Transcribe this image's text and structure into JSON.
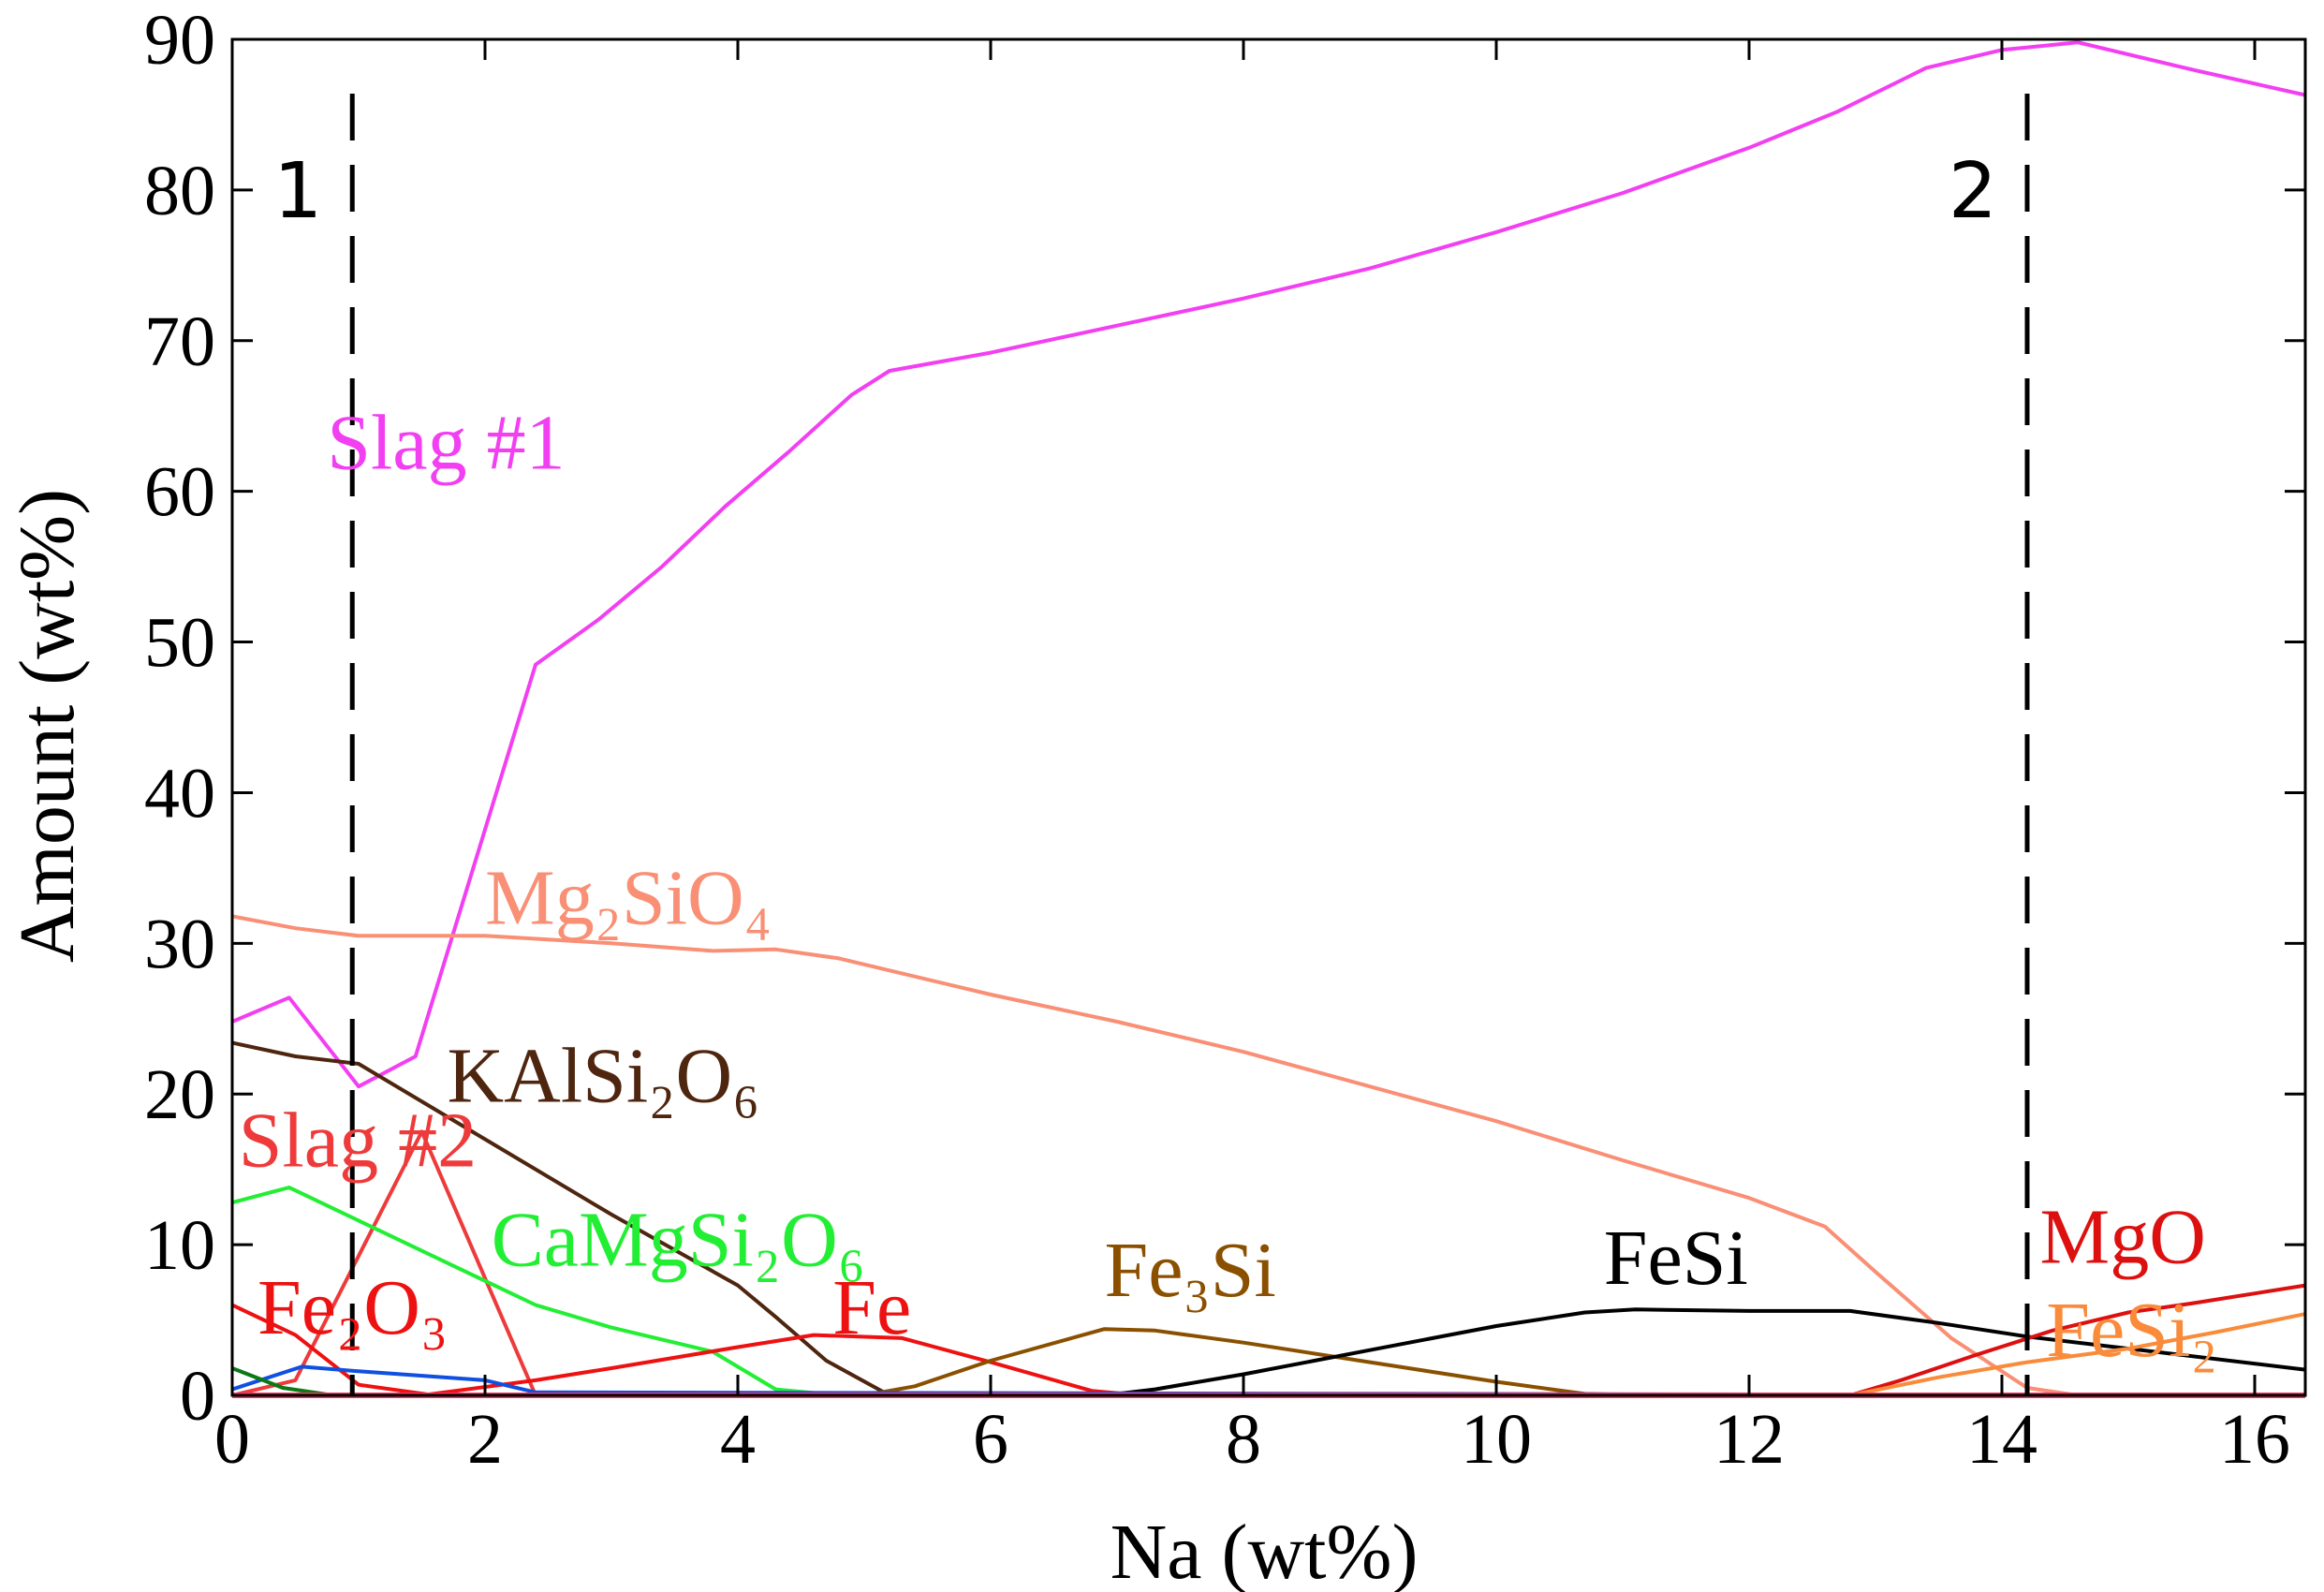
{
  "chart_data": {
    "type": "line",
    "title": "",
    "xlabel": "Na (wt%)",
    "ylabel": "Amount (wt%)",
    "xlim": [
      0,
      16.4
    ],
    "ylim": [
      0,
      90
    ],
    "xticks": [
      "0",
      "2",
      "4",
      "6",
      "8",
      "10",
      "12",
      "14",
      "16"
    ],
    "yticks": [
      "0",
      "10",
      "20",
      "30",
      "40",
      "50",
      "60",
      "70",
      "80",
      "90"
    ],
    "grid": false,
    "markers": [
      {
        "label": "1",
        "x": 0.95
      },
      {
        "label": "2",
        "x": 14.2
      }
    ],
    "series": [
      {
        "name": "Slag #1",
        "label": "Slag #1",
        "color": "#f23ff2",
        "x": [
          0,
          0.45,
          1,
          1.45,
          2.4,
          2.9,
          3.4,
          3.9,
          4.4,
          4.9,
          5.2,
          6,
          7,
          8,
          9,
          10,
          11,
          12,
          12.7,
          13.4,
          14,
          14.6,
          15.5,
          16.4
        ],
        "y": [
          24.8,
          26.4,
          20.5,
          22.5,
          48.5,
          51.5,
          55,
          59,
          62.6,
          66.4,
          68,
          69.2,
          71,
          72.8,
          74.8,
          77.2,
          79.8,
          82.8,
          85.2,
          88.1,
          89.3,
          89.8,
          88,
          86.3
        ]
      },
      {
        "name": "Mg2SiO4",
        "label": "Mg₂SiO₄",
        "color": "#f98f75",
        "x": [
          0,
          0.5,
          1,
          2,
          3,
          3.8,
          4.3,
          4.8,
          5.2,
          6,
          7,
          8,
          9,
          10,
          11,
          12,
          12.6,
          13,
          13.6,
          14.2,
          14.6,
          16.4
        ],
        "y": [
          31.8,
          31,
          30.5,
          30.5,
          30,
          29.5,
          29.6,
          29,
          28.2,
          26.6,
          24.8,
          22.8,
          20.5,
          18.2,
          15.6,
          13.1,
          11.2,
          8.2,
          3.8,
          0.5,
          0,
          0
        ]
      },
      {
        "name": "KAlSi2O6",
        "label": "KAlSi₂O₆",
        "color": "#4e260f",
        "x": [
          0,
          0.5,
          1,
          2,
          3,
          4,
          4.3,
          4.7,
          5.2,
          16.4
        ],
        "y": [
          23.4,
          22.5,
          22,
          17,
          12,
          7.3,
          5.2,
          2.3,
          0,
          0
        ]
      },
      {
        "name": "Slag #2",
        "label": "Slag #2",
        "color": "#ee3a3a",
        "x": [
          0,
          0.5,
          1.5,
          2.4,
          16.4
        ],
        "y": [
          0,
          1,
          17.5,
          0,
          0
        ]
      },
      {
        "name": "CaMgSi2O6",
        "label": "CaMgSi₂O₆",
        "color": "#22ee33",
        "x": [
          0,
          0.45,
          1,
          1.8,
          2.4,
          3,
          3.8,
          4.3,
          4.8,
          16.4
        ],
        "y": [
          12.8,
          13.8,
          11.6,
          8.4,
          6,
          4.5,
          2.9,
          0.4,
          0,
          0
        ]
      },
      {
        "name": "Fe2O3",
        "label": "Fe₂O₃",
        "color": "#ee1111",
        "x": [
          0,
          0.5,
          1,
          1.6,
          16.4
        ],
        "y": [
          6,
          4,
          0.7,
          0,
          0
        ]
      },
      {
        "name": "Fe",
        "label": "Fe",
        "color": "#ee1111",
        "x": [
          0,
          1.5,
          2.4,
          3,
          4,
          4.6,
          5.3,
          6,
          6.8,
          7.2,
          16.4
        ],
        "y": [
          0,
          0,
          1,
          1.8,
          3.2,
          4,
          3.8,
          2.2,
          0.3,
          0,
          0
        ]
      },
      {
        "name": "Fe3Si",
        "label": "Fe₃Si",
        "color": "#8a5000",
        "x": [
          0,
          5,
          5.4,
          6,
          6.9,
          7.3,
          8,
          9,
          10,
          10.7,
          11.2,
          16.4
        ],
        "y": [
          0,
          0,
          0.6,
          2.3,
          4.4,
          4.3,
          3.5,
          2.2,
          0.9,
          0.1,
          0,
          0
        ]
      },
      {
        "name": "FeSi",
        "label": "FeSi",
        "color": "#000000",
        "x": [
          0,
          6.9,
          7.3,
          8,
          9,
          10,
          10.7,
          11.1,
          12,
          12.8,
          13.5,
          14.2,
          15,
          16.4
        ],
        "y": [
          0,
          0,
          0.4,
          1.4,
          3,
          4.6,
          5.5,
          5.7,
          5.6,
          5.6,
          4.8,
          3.9,
          3.1,
          1.7
        ]
      },
      {
        "name": "MgO",
        "label": "MgO",
        "color": "#dd1010",
        "x": [
          0,
          12.8,
          13.2,
          13.8,
          14.4,
          15,
          15.5,
          16.4
        ],
        "y": [
          0,
          0,
          1,
          2.7,
          4.3,
          5.5,
          6.1,
          7.3
        ]
      },
      {
        "name": "FeSi2",
        "label": "FeSi₂",
        "color": "#f98b3a",
        "x": [
          0,
          12.8,
          13.5,
          14.2,
          15,
          15.7,
          16.4
        ],
        "y": [
          0,
          0,
          1.2,
          2.2,
          3.1,
          4.2,
          5.4
        ]
      },
      {
        "name": "unlabeled-blue",
        "label": "",
        "color": "#1050e0",
        "x": [
          0,
          0.55,
          1,
          2,
          2.4,
          16.4
        ],
        "y": [
          0.4,
          1.9,
          1.6,
          1,
          0.2,
          0
        ]
      },
      {
        "name": "unlabeled-green",
        "label": "",
        "color": "#0b7a14",
        "x": [
          0,
          0.4,
          0.8,
          16.4
        ],
        "y": [
          1.8,
          0.5,
          0,
          0
        ]
      },
      {
        "name": "baseline",
        "label": "",
        "color": "#ee3a66",
        "x": [
          0,
          16.4
        ],
        "y": [
          0,
          0
        ]
      }
    ]
  }
}
